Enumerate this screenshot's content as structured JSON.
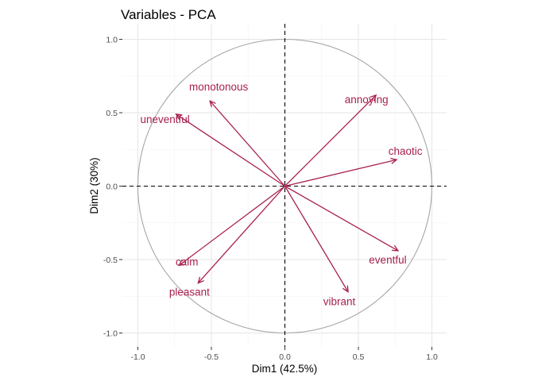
{
  "chart_data": {
    "type": "scatter",
    "title": "Variables - PCA",
    "xlabel": "Dim1 (42.5%)",
    "ylabel": "Dim2 (30%)",
    "xlim": [
      -1.0,
      1.0
    ],
    "ylim": [
      -1.0,
      1.0
    ],
    "x_ticks": [
      "-1.0",
      "-0.5",
      "0.0",
      "0.5",
      "1.0"
    ],
    "y_ticks": [
      "-1.0",
      "-0.5",
      "0.0",
      "0.5",
      "1.0"
    ],
    "grid": true,
    "correlation_circle": true,
    "variables": [
      {
        "name": "monotonous",
        "x": -0.51,
        "y": 0.58
      },
      {
        "name": "uneventful",
        "x": -0.74,
        "y": 0.49
      },
      {
        "name": "annoying",
        "x": 0.62,
        "y": 0.62
      },
      {
        "name": "chaotic",
        "x": 0.76,
        "y": 0.18
      },
      {
        "name": "eventful",
        "x": 0.77,
        "y": -0.44
      },
      {
        "name": "vibrant",
        "x": 0.43,
        "y": -0.72
      },
      {
        "name": "pleasant",
        "x": -0.59,
        "y": -0.66
      },
      {
        "name": "calm",
        "x": -0.72,
        "y": -0.54
      }
    ],
    "colors": {
      "arrow": "#a8204f",
      "circle": "#a6a6a6",
      "grid_major": "#e6e6e6",
      "grid_minor": "#f2f2f2",
      "zero_line": "#000000"
    }
  }
}
